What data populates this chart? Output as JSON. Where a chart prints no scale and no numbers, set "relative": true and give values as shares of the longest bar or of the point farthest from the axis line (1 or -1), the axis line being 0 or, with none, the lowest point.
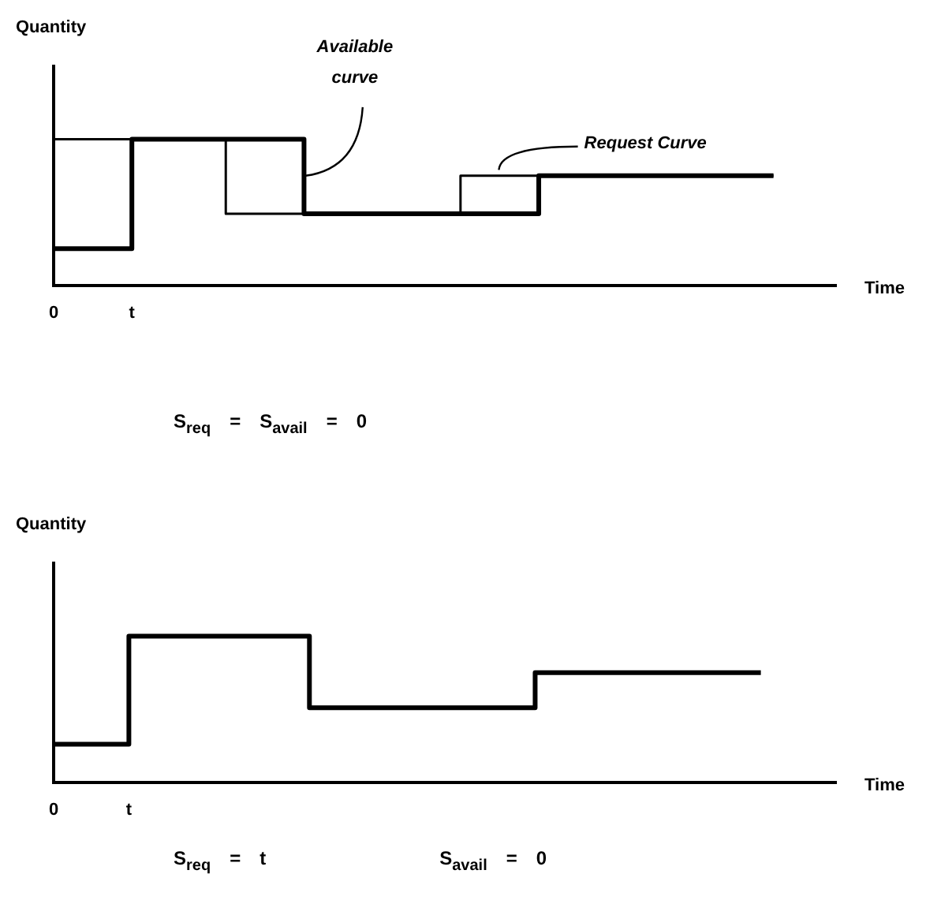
{
  "chart_data": [
    {
      "type": "step",
      "xlabel": "Time",
      "ylabel": "Quantity",
      "relative": true,
      "categories": [
        "0",
        null,
        null,
        null,
        null,
        "t",
        null,
        null,
        null,
        null,
        null,
        null,
        null,
        null,
        null,
        null,
        null,
        null,
        null,
        null,
        null,
        null,
        null,
        null,
        null,
        null,
        null,
        null,
        null,
        null,
        null,
        null,
        null,
        null,
        null,
        null,
        null,
        null,
        null,
        null,
        null,
        null,
        null,
        null,
        null,
        null,
        null,
        null,
        null,
        null,
        null
      ],
      "series": [
        {
          "name": "Available curve",
          "color": "#000000",
          "values": [
            0.25,
            0.25,
            0.25,
            0.25,
            0.25,
            1,
            1,
            1,
            1,
            1,
            1,
            1,
            1,
            1,
            1,
            1,
            0.49,
            0.49,
            0.49,
            0.49,
            0.49,
            0.49,
            0.49,
            0.49,
            0.49,
            0.49,
            0.49,
            0.49,
            0.49,
            0.49,
            0.49,
            0.75,
            0.75,
            0.75,
            0.75,
            0.75,
            0.75,
            0.75,
            0.75,
            0.75,
            0.75,
            0.75,
            0.75,
            0.75,
            0.75,
            0.75,
            0.75,
            null,
            null,
            null,
            null
          ]
        },
        {
          "name": "Request Curve",
          "color": "#000000",
          "values": [
            1,
            1,
            1,
            1,
            1,
            1,
            1,
            1,
            1,
            1,
            1,
            0.49,
            0.49,
            0.49,
            0.49,
            0.49,
            0.49,
            0.49,
            0.49,
            0.49,
            0.49,
            0.49,
            0.49,
            0.49,
            0.49,
            0.49,
            0.75,
            0.75,
            0.75,
            0.75,
            0.75,
            0.75,
            0.75,
            0.75,
            0.75,
            0.75,
            0.75,
            0.75,
            0.75,
            0.75,
            0.75,
            0.75,
            0.75,
            0.75,
            0.75,
            0.75,
            0.75,
            null,
            null,
            null,
            null
          ]
        }
      ],
      "annotations": [
        "S$_{req}$ = S$_{avail}$ = 0"
      ]
    },
    {
      "type": "step",
      "xlabel": "Time",
      "ylabel": "Quantity",
      "relative": true,
      "categories": [
        "0",
        null,
        null,
        null,
        null,
        "t",
        null,
        null,
        null,
        null,
        null,
        null,
        null,
        null,
        null,
        null,
        null,
        null,
        null,
        null,
        null,
        null,
        null,
        null,
        null,
        null,
        null,
        null,
        null,
        null,
        null,
        null,
        null,
        null,
        null,
        null,
        null,
        null,
        null,
        null,
        null,
        null,
        null,
        null,
        null,
        null,
        null,
        null,
        null,
        null,
        null,
        null,
        null
      ],
      "series": [
        {
          "color": "#000000",
          "values": [
            0.26,
            0.26,
            0.26,
            0.26,
            0.26,
            1,
            1,
            1,
            1,
            1,
            1,
            1,
            1,
            1,
            1,
            1,
            1,
            0.51,
            0.51,
            0.51,
            0.51,
            0.51,
            0.51,
            0.51,
            0.51,
            0.51,
            0.51,
            0.51,
            0.51,
            0.51,
            0.51,
            0.51,
            0.75,
            0.75,
            0.75,
            0.75,
            0.75,
            0.75,
            0.75,
            0.75,
            0.75,
            0.75,
            0.75,
            0.75,
            0.75,
            0.75,
            0.75,
            0.75,
            null,
            null,
            null,
            null,
            null
          ]
        }
      ],
      "annotations": [
        "S$_{req}$ = t",
        "S$_{avail}$ = 0"
      ]
    }
  ]
}
